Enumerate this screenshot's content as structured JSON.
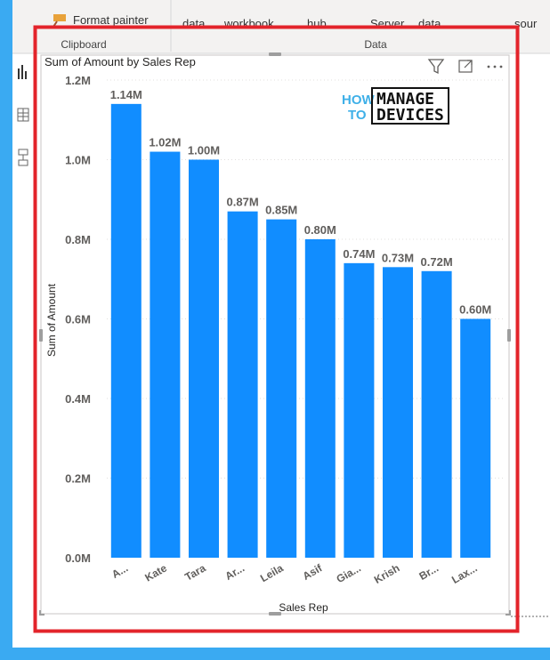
{
  "ribbon": {
    "format_painter": "Format painter",
    "items": [
      "data",
      "workbook",
      "hub",
      "Server",
      "data",
      "sour"
    ],
    "group_clipboard": "Clipboard",
    "group_data": "Data"
  },
  "logo": {
    "how": "HOW",
    "to": "TO",
    "manage": "MANAGE",
    "devices": "DEVICES"
  },
  "colors": {
    "bar": "#118dff",
    "frame": "#e3242b",
    "background": "#3aaaf2"
  },
  "chart_data": {
    "type": "bar",
    "title": "Sum of Amount by Sales Rep",
    "xlabel": "Sales Rep",
    "ylabel": "Sum of Amount",
    "categories": [
      "A...",
      "Kate",
      "Tara",
      "Ar...",
      "Leila",
      "Asif",
      "Gia...",
      "Krish",
      "Br...",
      "Lax..."
    ],
    "values": [
      1.14,
      1.02,
      1.0,
      0.87,
      0.85,
      0.8,
      0.74,
      0.73,
      0.72,
      0.6
    ],
    "data_labels": [
      "1.14M",
      "1.02M",
      "1.00M",
      "0.87M",
      "0.85M",
      "0.80M",
      "0.74M",
      "0.73M",
      "0.72M",
      "0.60M"
    ],
    "ylim": [
      0,
      1.2
    ],
    "yticks": [
      0,
      0.2,
      0.4,
      0.6,
      0.8,
      1.0,
      1.2
    ],
    "ytick_labels": [
      "0.0M",
      "0.2M",
      "0.4M",
      "0.6M",
      "0.8M",
      "1.0M",
      "1.2M"
    ],
    "grid": true
  }
}
